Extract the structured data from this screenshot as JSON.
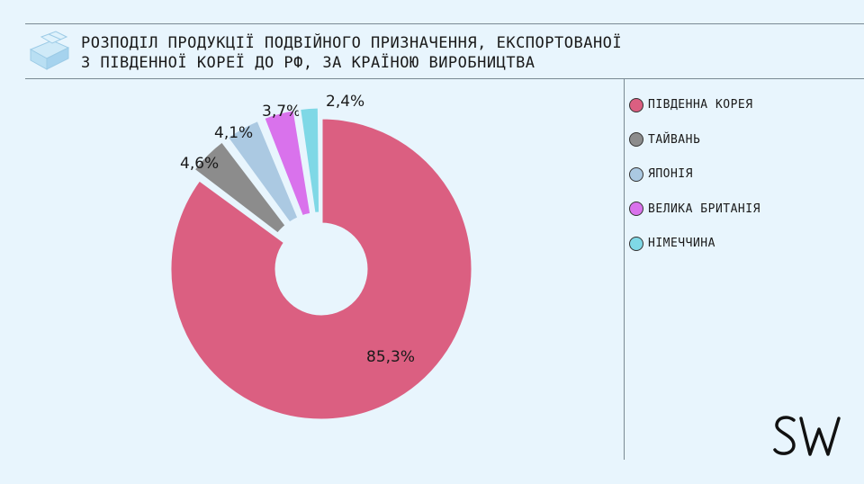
{
  "header": {
    "title": "РОЗПОДІЛ ПРОДУКЦІЇ ПОДВІЙНОГО ПРИЗНАЧЕННЯ, ЕКСПОРТОВАНОЇ\nЗ ПІВДЕННОЇ КОРЕЇ ДО РФ, ЗА КРАЇНОЮ ВИРОБНИЦТВА",
    "icon": "box-icon"
  },
  "brand": {
    "logo": "SW"
  },
  "chart_data": {
    "type": "pie",
    "style": "donut-exploded",
    "title": "",
    "legend_position": "right",
    "slices": [
      {
        "label": "ПІВДЕННА КОРЕЯ",
        "value": 85.3,
        "display": "85,3%",
        "color": "#db5f81"
      },
      {
        "label": "ТАЙВАНЬ",
        "value": 4.6,
        "display": "4,6%",
        "color": "#8c8c8c"
      },
      {
        "label": "ЯПОНІЯ",
        "value": 4.1,
        "display": "4,1%",
        "color": "#abc9e2"
      },
      {
        "label": "ВЕЛИКА БРИТАНІЯ",
        "value": 3.7,
        "display": "3,7%",
        "color": "#d972ec"
      },
      {
        "label": "НІМЕЧЧИНА",
        "value": 2.4,
        "display": "2,4%",
        "color": "#7fd8e6"
      }
    ]
  }
}
